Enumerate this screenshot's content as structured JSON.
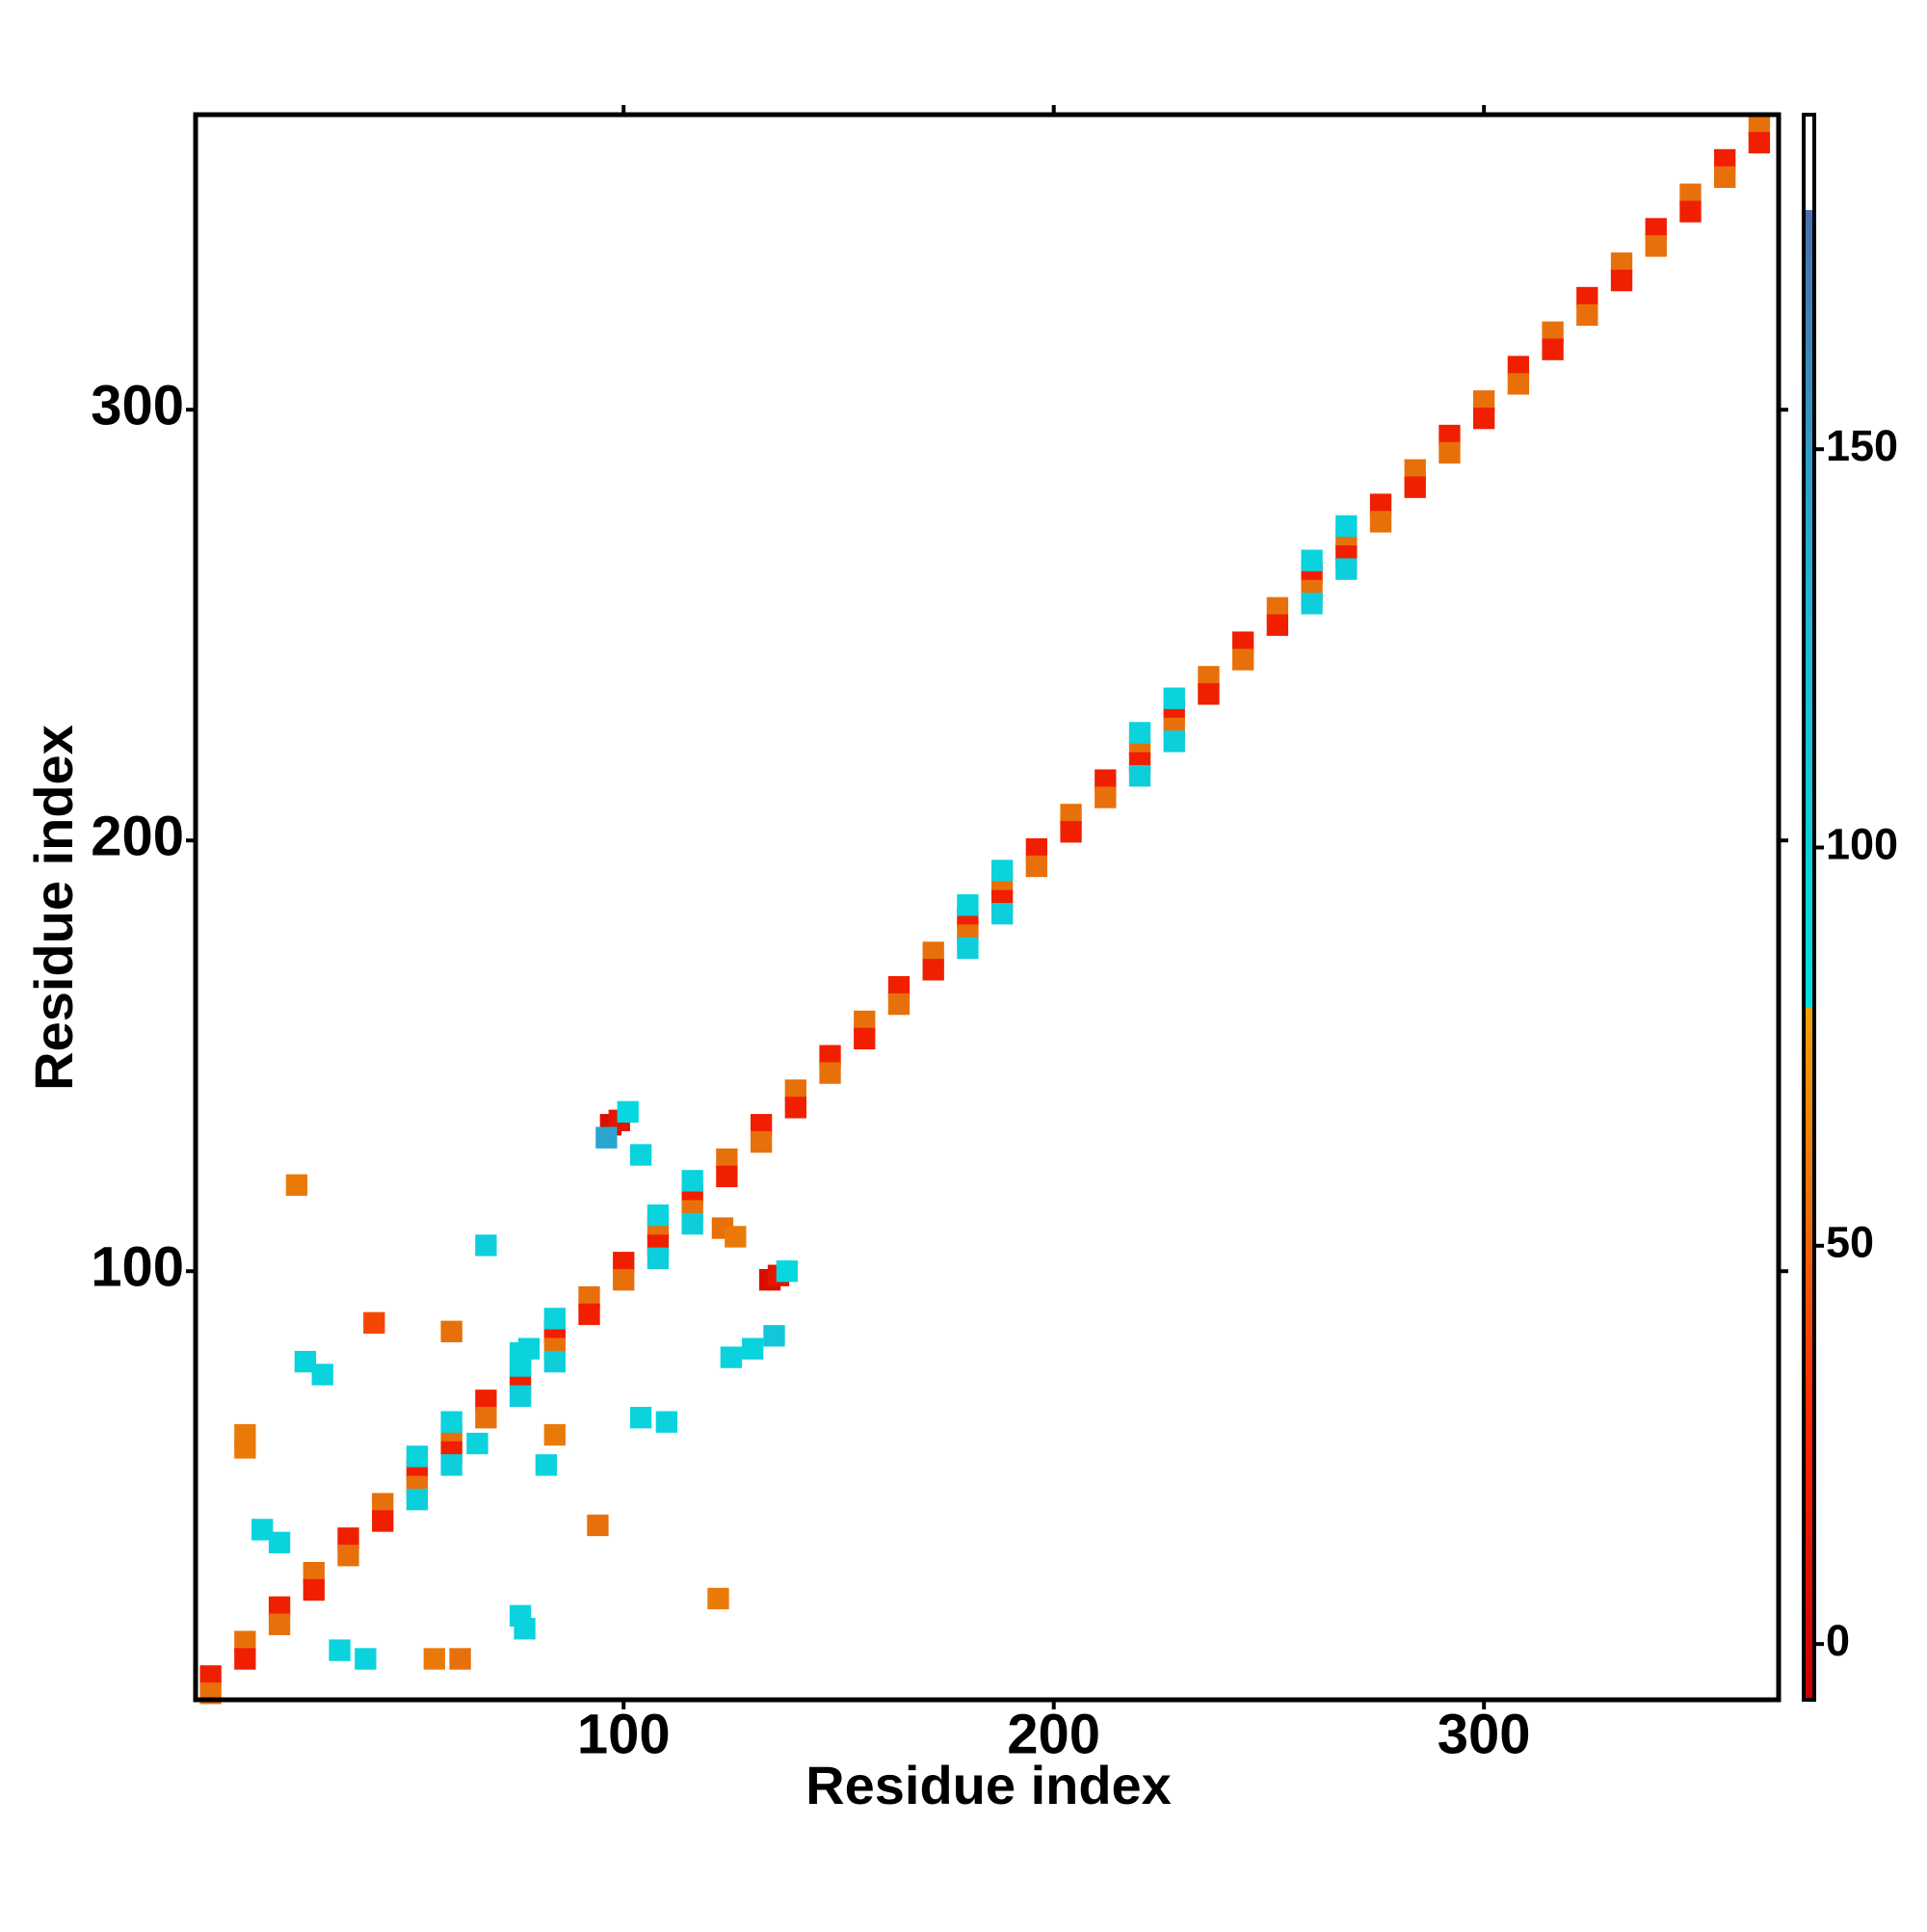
{
  "chart_data": {
    "type": "heatmap",
    "x_label": "Residue index",
    "y_label": "Residue index",
    "xlim": [
      0.5,
      368.5
    ],
    "ylim": [
      0.5,
      368.5
    ],
    "xticks": [
      100,
      200,
      300
    ],
    "yticks": [
      100,
      200,
      300
    ],
    "cell_size": 5,
    "zlim": [
      -7,
      192
    ],
    "zticks": [
      0,
      50,
      100,
      150
    ],
    "colorscale": [
      [
        -7,
        "#c80000"
      ],
      [
        30,
        "#ff2a00"
      ],
      [
        55,
        "#e8700a"
      ],
      [
        80,
        "#f0a000"
      ],
      [
        80,
        "#00e0e0"
      ],
      [
        130,
        "#22b4d6"
      ],
      [
        180,
        "#4a6fb0"
      ],
      [
        180,
        "#ffffff"
      ],
      [
        192,
        "#ffffff"
      ]
    ],
    "cells": [
      [
        4,
        6,
        20
      ],
      [
        12,
        14,
        55
      ],
      [
        20,
        22,
        20
      ],
      [
        28,
        30,
        55
      ],
      [
        36,
        38,
        20
      ],
      [
        44,
        46,
        55
      ],
      [
        52,
        54,
        20
      ],
      [
        60,
        62,
        55
      ],
      [
        68,
        70,
        20
      ],
      [
        76,
        78,
        55
      ],
      [
        84,
        86,
        20
      ],
      [
        92,
        94,
        55
      ],
      [
        100,
        102,
        20
      ],
      [
        108,
        110,
        55
      ],
      [
        116,
        118,
        20
      ],
      [
        124,
        126,
        55
      ],
      [
        132,
        134,
        20
      ],
      [
        140,
        142,
        55
      ],
      [
        148,
        150,
        20
      ],
      [
        156,
        158,
        55
      ],
      [
        164,
        166,
        20
      ],
      [
        172,
        174,
        55
      ],
      [
        180,
        182,
        20
      ],
      [
        188,
        190,
        55
      ],
      [
        196,
        198,
        20
      ],
      [
        204,
        206,
        55
      ],
      [
        212,
        214,
        20
      ],
      [
        220,
        222,
        55
      ],
      [
        228,
        230,
        20
      ],
      [
        236,
        238,
        55
      ],
      [
        244,
        246,
        20
      ],
      [
        252,
        254,
        55
      ],
      [
        260,
        262,
        20
      ],
      [
        268,
        270,
        55
      ],
      [
        276,
        278,
        20
      ],
      [
        284,
        286,
        55
      ],
      [
        292,
        294,
        20
      ],
      [
        300,
        302,
        55
      ],
      [
        308,
        310,
        20
      ],
      [
        316,
        318,
        55
      ],
      [
        324,
        326,
        20
      ],
      [
        332,
        334,
        55
      ],
      [
        340,
        342,
        20
      ],
      [
        348,
        350,
        55
      ],
      [
        356,
        358,
        20
      ],
      [
        364,
        366,
        55
      ],
      [
        4,
        2,
        55
      ],
      [
        12,
        10,
        20
      ],
      [
        20,
        18,
        55
      ],
      [
        28,
        26,
        20
      ],
      [
        36,
        34,
        55
      ],
      [
        44,
        42,
        20
      ],
      [
        52,
        50,
        55
      ],
      [
        60,
        58,
        20
      ],
      [
        68,
        66,
        55
      ],
      [
        76,
        74,
        20
      ],
      [
        84,
        82,
        55
      ],
      [
        92,
        90,
        20
      ],
      [
        100,
        98,
        55
      ],
      [
        108,
        106,
        20
      ],
      [
        116,
        114,
        55
      ],
      [
        124,
        122,
        20
      ],
      [
        132,
        130,
        55
      ],
      [
        140,
        138,
        20
      ],
      [
        148,
        146,
        55
      ],
      [
        156,
        154,
        20
      ],
      [
        164,
        162,
        55
      ],
      [
        172,
        170,
        20
      ],
      [
        180,
        178,
        55
      ],
      [
        188,
        186,
        20
      ],
      [
        196,
        194,
        55
      ],
      [
        204,
        202,
        20
      ],
      [
        212,
        210,
        55
      ],
      [
        220,
        218,
        20
      ],
      [
        228,
        226,
        55
      ],
      [
        236,
        234,
        20
      ],
      [
        244,
        242,
        55
      ],
      [
        252,
        250,
        20
      ],
      [
        260,
        258,
        55
      ],
      [
        268,
        266,
        20
      ],
      [
        276,
        274,
        55
      ],
      [
        284,
        282,
        20
      ],
      [
        292,
        290,
        55
      ],
      [
        300,
        298,
        20
      ],
      [
        308,
        306,
        55
      ],
      [
        316,
        314,
        20
      ],
      [
        324,
        322,
        55
      ],
      [
        332,
        330,
        20
      ],
      [
        340,
        338,
        55
      ],
      [
        348,
        346,
        20
      ],
      [
        356,
        354,
        55
      ],
      [
        364,
        362,
        20
      ],
      [
        52,
        57,
        95
      ],
      [
        60,
        65,
        95
      ],
      [
        76,
        81,
        95
      ],
      [
        84,
        89,
        95
      ],
      [
        108,
        113,
        95
      ],
      [
        116,
        121,
        95
      ],
      [
        180,
        185,
        95
      ],
      [
        188,
        193,
        95
      ],
      [
        220,
        225,
        95
      ],
      [
        228,
        233,
        95
      ],
      [
        260,
        265,
        95
      ],
      [
        268,
        273,
        95
      ],
      [
        52,
        47,
        100
      ],
      [
        60,
        55,
        100
      ],
      [
        76,
        71,
        100
      ],
      [
        84,
        79,
        100
      ],
      [
        108,
        103,
        100
      ],
      [
        116,
        111,
        100
      ],
      [
        180,
        175,
        100
      ],
      [
        188,
        183,
        100
      ],
      [
        220,
        215,
        100
      ],
      [
        228,
        223,
        100
      ],
      [
        260,
        255,
        100
      ],
      [
        268,
        263,
        100
      ],
      [
        97,
        134,
        5
      ],
      [
        99,
        135,
        12
      ],
      [
        101,
        137,
        90
      ],
      [
        134,
        98,
        5
      ],
      [
        136,
        99,
        12
      ],
      [
        138,
        100,
        90
      ],
      [
        24,
        120,
        60
      ],
      [
        26,
        79,
        95
      ],
      [
        30,
        76,
        95
      ],
      [
        12,
        62,
        60
      ],
      [
        12,
        59,
        60
      ],
      [
        68,
        106,
        100
      ],
      [
        82,
        55,
        95
      ],
      [
        66,
        60,
        95
      ],
      [
        60,
        86,
        55
      ],
      [
        56,
        10,
        60
      ],
      [
        62,
        10,
        55
      ],
      [
        76,
        20,
        95
      ],
      [
        77,
        17,
        95
      ],
      [
        122,
        24,
        60
      ],
      [
        125,
        80,
        95
      ],
      [
        130,
        82,
        95
      ],
      [
        135,
        85,
        110
      ],
      [
        42,
        88,
        40
      ],
      [
        78,
        82,
        95
      ],
      [
        76,
        78,
        95
      ],
      [
        34,
        12,
        95
      ],
      [
        40,
        10,
        95
      ],
      [
        16,
        40,
        95
      ],
      [
        20,
        37,
        95
      ],
      [
        94,
        41,
        55
      ],
      [
        84,
        62,
        60
      ],
      [
        110,
        65,
        95
      ],
      [
        104,
        66,
        95
      ],
      [
        104,
        127,
        95
      ],
      [
        96,
        131,
        140
      ],
      [
        123,
        110,
        55
      ],
      [
        126,
        108,
        60
      ]
    ]
  }
}
